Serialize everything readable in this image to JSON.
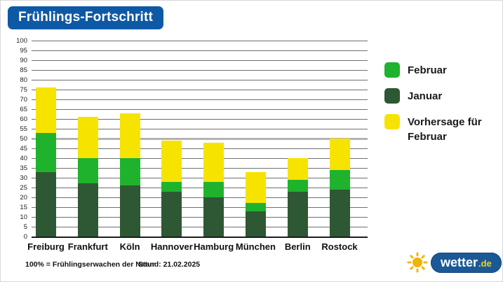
{
  "title": "Frühlings-Fortschritt",
  "colors": {
    "badge_blue": "#0e59a6",
    "februar_green": "#1fb32d",
    "januar_green": "#2e5833",
    "vorhersage_yellow": "#f7e300",
    "gridline": "#6f6f6f",
    "gridline_50": "#b3b3b3",
    "axis_black": "#1c1c1c",
    "background": "#ffffff"
  },
  "legend": {
    "items": [
      {
        "label": "Februar",
        "color": "#1fb32d"
      },
      {
        "label": "Januar",
        "color": "#2e5833"
      },
      {
        "label": "Vorhersage für Februar",
        "color": "#f7e300"
      }
    ]
  },
  "chart_data": {
    "type": "bar",
    "stacked": true,
    "title": "Frühlings-Fortschritt",
    "categories": [
      "Freiburg",
      "Frankfurt",
      "Köln",
      "Hannover",
      "Hamburg",
      "München",
      "Berlin",
      "Rostock"
    ],
    "series": [
      {
        "name": "Januar",
        "color": "#2e5833",
        "values": [
          33,
          27,
          26,
          23,
          20,
          13,
          23,
          24
        ]
      },
      {
        "name": "Februar",
        "color": "#1fb32d",
        "values": [
          20,
          13,
          14,
          5,
          8,
          4,
          6,
          10
        ]
      },
      {
        "name": "Vorhersage für Februar",
        "color": "#f7e300",
        "values": [
          23,
          21,
          23,
          21,
          20,
          16,
          11,
          16
        ]
      }
    ],
    "stack_order_bottom_to_top": [
      "Januar",
      "Februar",
      "Vorhersage für Februar"
    ],
    "bar_totals": [
      76,
      61,
      63,
      49,
      48,
      33,
      40,
      50
    ],
    "xlabel": "",
    "ylabel": "",
    "ylim": [
      0,
      100
    ],
    "ytick_step": 5,
    "grid": true,
    "legend_position": "right",
    "unit": "%"
  },
  "footer": {
    "note": "100% = Frühlingserwachen der Natur",
    "stand": "Stand: 21.02.2025"
  },
  "logo": {
    "brand": "wetter",
    "tld": ".de"
  }
}
